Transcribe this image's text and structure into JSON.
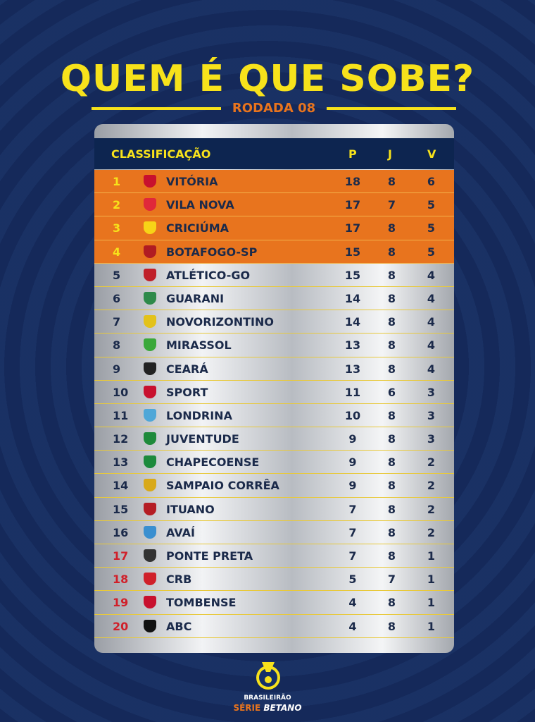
{
  "title": "QUEM É QUE SOBE?",
  "round": "RODADA 08",
  "header": {
    "classificacao": "CLASSIFICAÇÃO",
    "p": "P",
    "j": "J",
    "v": "V"
  },
  "colors": {
    "background": "#142a55",
    "promotion": "#e8741e",
    "accent": "#f7e21b",
    "relegation": "#d0202a"
  },
  "standings": [
    {
      "pos": "1",
      "team": "VITÓRIA",
      "p": "18",
      "j": "8",
      "v": "6",
      "zone": "promotion",
      "crest": "#c8102e"
    },
    {
      "pos": "2",
      "team": "VILA NOVA",
      "p": "17",
      "j": "7",
      "v": "5",
      "zone": "promotion",
      "crest": "#e0283a"
    },
    {
      "pos": "3",
      "team": "CRICIÚMA",
      "p": "17",
      "j": "8",
      "v": "5",
      "zone": "promotion",
      "crest": "#f7d417"
    },
    {
      "pos": "4",
      "team": "BOTAFOGO-SP",
      "p": "15",
      "j": "8",
      "v": "5",
      "zone": "promotion",
      "crest": "#b01c22"
    },
    {
      "pos": "5",
      "team": "ATLÉTICO-GO",
      "p": "15",
      "j": "8",
      "v": "4",
      "zone": "",
      "crest": "#c0202a"
    },
    {
      "pos": "6",
      "team": "GUARANI",
      "p": "14",
      "j": "8",
      "v": "4",
      "zone": "",
      "crest": "#2e8a4a"
    },
    {
      "pos": "7",
      "team": "NOVORIZONTINO",
      "p": "14",
      "j": "8",
      "v": "4",
      "zone": "",
      "crest": "#e3c21a"
    },
    {
      "pos": "8",
      "team": "MIRASSOL",
      "p": "13",
      "j": "8",
      "v": "4",
      "zone": "",
      "crest": "#3aa83a"
    },
    {
      "pos": "9",
      "team": "CEARÁ",
      "p": "13",
      "j": "8",
      "v": "4",
      "zone": "",
      "crest": "#222"
    },
    {
      "pos": "10",
      "team": "SPORT",
      "p": "11",
      "j": "6",
      "v": "3",
      "zone": "",
      "crest": "#c8102e"
    },
    {
      "pos": "11",
      "team": "LONDRINA",
      "p": "10",
      "j": "8",
      "v": "3",
      "zone": "",
      "crest": "#4fa7d8"
    },
    {
      "pos": "12",
      "team": "JUVENTUDE",
      "p": "9",
      "j": "8",
      "v": "3",
      "zone": "",
      "crest": "#1e8a3a"
    },
    {
      "pos": "13",
      "team": "CHAPECOENSE",
      "p": "9",
      "j": "8",
      "v": "2",
      "zone": "",
      "crest": "#1c8a3c"
    },
    {
      "pos": "14",
      "team": "SAMPAIO CORRÊA",
      "p": "9",
      "j": "8",
      "v": "2",
      "zone": "",
      "crest": "#d8a91a"
    },
    {
      "pos": "15",
      "team": "ITUANO",
      "p": "7",
      "j": "8",
      "v": "2",
      "zone": "",
      "crest": "#b51d24"
    },
    {
      "pos": "16",
      "team": "AVAÍ",
      "p": "7",
      "j": "8",
      "v": "2",
      "zone": "",
      "crest": "#3a8fd0"
    },
    {
      "pos": "17",
      "team": "PONTE PRETA",
      "p": "7",
      "j": "8",
      "v": "1",
      "zone": "relegation",
      "crest": "#333"
    },
    {
      "pos": "18",
      "team": "CRB",
      "p": "5",
      "j": "7",
      "v": "1",
      "zone": "relegation",
      "crest": "#d0202a"
    },
    {
      "pos": "19",
      "team": "TOMBENSE",
      "p": "4",
      "j": "8",
      "v": "1",
      "zone": "relegation",
      "crest": "#c8102e"
    },
    {
      "pos": "20",
      "team": "ABC",
      "p": "4",
      "j": "8",
      "v": "1",
      "zone": "relegation",
      "crest": "#111"
    }
  ],
  "footer": {
    "brand": "BRASILEIRÃO",
    "serie": "SÉRIE",
    "sponsor": "BETANO"
  }
}
